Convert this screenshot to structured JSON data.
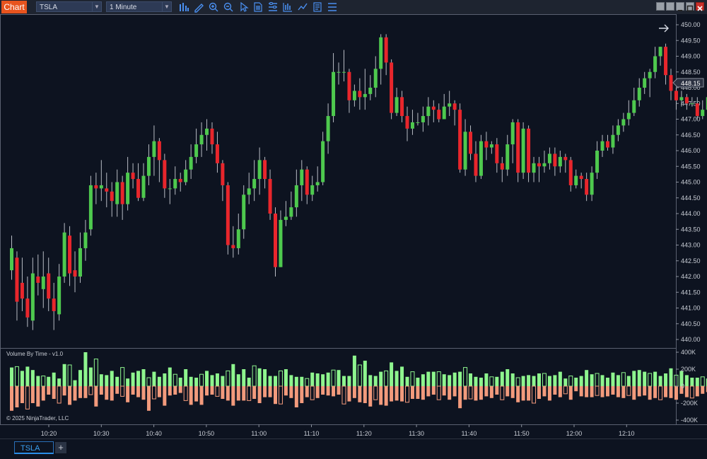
{
  "toolbar": {
    "chart_label": "Chart",
    "instrument": "TSLA",
    "interval": "1 Minute",
    "tools": [
      "bar-type-icon",
      "pencil-icon",
      "zoom-in-icon",
      "zoom-out-icon",
      "pointer-icon",
      "data-box-icon",
      "properties-icon",
      "indicators-icon",
      "strategies-icon",
      "templates-icon",
      "chart-trader-icon"
    ]
  },
  "window_buttons": [
    "tile-icon",
    "minimize-icon",
    "maximize-icon",
    "close-icon"
  ],
  "price_axis": {
    "ticks": [
      "450.00",
      "449.50",
      "449.00",
      "448.50",
      "448.00",
      "447.50",
      "447.00",
      "446.50",
      "446.00",
      "445.50",
      "445.00",
      "444.50",
      "444.00",
      "443.50",
      "443.00",
      "442.50",
      "442.00",
      "441.50",
      "441.00",
      "440.50",
      "440.00"
    ],
    "last_price": "448.15"
  },
  "volume_axis": {
    "ticks": [
      "400K",
      "200K",
      "0",
      "-200K",
      "-400K"
    ]
  },
  "volume_indicator_label": "Volume By Time - v1.0",
  "copyright": "© 2025 NinjaTrader, LLC",
  "time_axis": {
    "ticks": [
      "10:20",
      "10:30",
      "10:40",
      "10:50",
      "11:00",
      "11:10",
      "11:20",
      "11:30",
      "11:40",
      "11:50",
      "12:00",
      "12:10"
    ]
  },
  "tabs": [
    {
      "label": "TSLA"
    }
  ],
  "colors": {
    "up": "#4ec94e",
    "down": "#e8262c",
    "vol_up": "#8ef58e",
    "vol_down": "#f29a7c",
    "background": "#0d1320"
  },
  "chart_data": {
    "type": "candlestick",
    "y_range": [
      439.8,
      450.2
    ],
    "candles": [
      [
        442.2,
        442.9,
        443.3,
        441.9
      ],
      [
        442.6,
        441.2,
        442.8,
        440.6
      ],
      [
        441.8,
        441.3,
        442.6,
        440.9
      ],
      [
        441.3,
        440.7,
        442.0,
        440.4
      ],
      [
        440.6,
        442.1,
        442.6,
        440.3
      ],
      [
        442.0,
        441.8,
        442.7,
        441.4
      ],
      [
        441.6,
        442.0,
        442.8,
        441.0
      ],
      [
        442.1,
        441.3,
        442.6,
        440.9
      ],
      [
        441.3,
        440.9,
        441.8,
        440.3
      ],
      [
        440.8,
        442.0,
        442.4,
        440.6
      ],
      [
        442.0,
        443.4,
        443.7,
        441.8
      ],
      [
        443.3,
        442.1,
        443.6,
        441.7
      ],
      [
        442.2,
        442.0,
        442.8,
        441.5
      ],
      [
        442.0,
        442.9,
        443.4,
        441.8
      ],
      [
        442.9,
        443.4,
        443.8,
        442.5
      ],
      [
        443.5,
        444.9,
        445.2,
        443.3
      ],
      [
        444.9,
        444.8,
        445.3,
        444.3
      ],
      [
        444.8,
        444.9,
        445.7,
        444.4
      ],
      [
        444.8,
        444.7,
        445.3,
        444.2
      ],
      [
        444.7,
        444.4,
        445.0,
        443.9
      ],
      [
        444.3,
        445.0,
        445.4,
        443.9
      ],
      [
        445.0,
        444.3,
        445.2,
        443.8
      ],
      [
        444.3,
        445.3,
        445.8,
        444.1
      ],
      [
        445.3,
        445.1,
        445.6,
        444.8
      ],
      [
        445.1,
        444.5,
        445.6,
        444.4
      ],
      [
        444.5,
        445.2,
        445.6,
        444.4
      ],
      [
        445.2,
        445.8,
        446.2,
        444.9
      ],
      [
        445.8,
        446.3,
        446.8,
        445.2
      ],
      [
        446.3,
        445.7,
        446.4,
        445.0
      ],
      [
        445.7,
        444.8,
        445.9,
        444.5
      ],
      [
        444.8,
        444.8,
        445.1,
        444.3
      ],
      [
        444.8,
        445.1,
        445.5,
        444.6
      ],
      [
        445.1,
        445.0,
        445.3,
        444.7
      ],
      [
        445.0,
        445.4,
        445.7,
        444.9
      ],
      [
        445.4,
        445.8,
        446.2,
        445.1
      ],
      [
        445.8,
        446.2,
        446.7,
        445.6
      ],
      [
        446.2,
        446.5,
        446.9,
        445.8
      ],
      [
        446.5,
        446.7,
        447.0,
        446.0
      ],
      [
        446.7,
        446.2,
        446.9,
        445.9
      ],
      [
        446.2,
        445.6,
        446.6,
        445.3
      ],
      [
        445.6,
        444.9,
        445.7,
        444.4
      ],
      [
        444.9,
        443.0,
        445.0,
        442.7
      ],
      [
        443.0,
        442.9,
        443.6,
        442.6
      ],
      [
        442.9,
        443.5,
        444.0,
        442.7
      ],
      [
        443.5,
        444.6,
        444.9,
        443.2
      ],
      [
        444.6,
        444.8,
        445.3,
        444.3
      ],
      [
        444.8,
        445.1,
        445.7,
        444.4
      ],
      [
        445.1,
        445.7,
        446.1,
        444.6
      ],
      [
        445.7,
        445.1,
        445.8,
        444.8
      ],
      [
        445.1,
        444.0,
        445.4,
        443.8
      ],
      [
        444.0,
        442.3,
        444.2,
        442.0
      ],
      [
        442.3,
        443.8,
        444.1,
        442.3
      ],
      [
        443.8,
        443.9,
        444.4,
        443.6
      ],
      [
        443.9,
        444.2,
        444.7,
        443.8
      ],
      [
        444.2,
        444.9,
        445.4,
        443.9
      ],
      [
        444.9,
        445.4,
        445.7,
        444.4
      ],
      [
        445.4,
        444.6,
        445.5,
        444.3
      ],
      [
        444.6,
        444.9,
        445.2,
        444.4
      ],
      [
        444.9,
        445.0,
        445.5,
        444.7
      ],
      [
        445.0,
        446.3,
        446.6,
        444.9
      ],
      [
        446.3,
        447.1,
        447.5,
        445.9
      ],
      [
        447.1,
        448.5,
        449.1,
        446.9
      ],
      [
        448.5,
        448.5,
        448.8,
        448.1
      ],
      [
        448.5,
        448.5,
        449.2,
        448.2
      ],
      [
        448.5,
        447.6,
        448.6,
        447.2
      ],
      [
        447.6,
        447.9,
        448.1,
        447.4
      ],
      [
        447.9,
        447.7,
        448.3,
        447.3
      ],
      [
        447.7,
        447.8,
        448.6,
        447.3
      ],
      [
        447.8,
        448.0,
        448.4,
        447.6
      ],
      [
        448.0,
        448.6,
        449.0,
        447.7
      ],
      [
        448.6,
        449.6,
        449.7,
        448.1
      ],
      [
        449.6,
        448.8,
        449.7,
        448.4
      ],
      [
        448.8,
        447.2,
        448.9,
        447.0
      ],
      [
        447.2,
        447.7,
        448.0,
        447.1
      ],
      [
        447.7,
        447.1,
        447.9,
        446.9
      ],
      [
        447.1,
        446.7,
        447.4,
        446.3
      ],
      [
        446.7,
        446.9,
        447.3,
        446.5
      ],
      [
        446.9,
        446.9,
        447.2,
        446.8
      ],
      [
        446.9,
        447.1,
        447.4,
        446.6
      ],
      [
        447.1,
        447.4,
        447.7,
        446.8
      ],
      [
        447.4,
        447.3,
        447.6,
        446.9
      ],
      [
        447.3,
        447.0,
        447.5,
        446.9
      ],
      [
        447.0,
        447.4,
        447.8,
        447.0
      ],
      [
        447.4,
        447.5,
        447.9,
        447.1
      ],
      [
        447.5,
        447.3,
        447.6,
        446.8
      ],
      [
        447.3,
        445.4,
        447.5,
        445.3
      ],
      [
        445.4,
        446.6,
        447.0,
        445.2
      ],
      [
        446.6,
        445.9,
        446.8,
        445.7
      ],
      [
        445.9,
        445.2,
        446.3,
        445.0
      ],
      [
        445.2,
        446.3,
        446.5,
        445.1
      ],
      [
        446.3,
        446.1,
        446.6,
        445.7
      ],
      [
        446.1,
        446.2,
        446.3,
        445.9
      ],
      [
        446.2,
        445.6,
        446.4,
        445.3
      ],
      [
        445.6,
        445.4,
        445.8,
        445.0
      ],
      [
        445.4,
        446.2,
        446.5,
        445.2
      ],
      [
        446.2,
        446.9,
        447.0,
        445.6
      ],
      [
        446.9,
        445.3,
        447.0,
        445.0
      ],
      [
        445.3,
        446.7,
        446.9,
        445.1
      ],
      [
        446.7,
        445.3,
        446.8,
        445.0
      ],
      [
        445.3,
        445.6,
        445.8,
        445.0
      ],
      [
        445.6,
        445.5,
        445.8,
        445.0
      ],
      [
        445.5,
        445.6,
        446.0,
        445.3
      ],
      [
        445.6,
        445.9,
        446.1,
        445.4
      ],
      [
        445.9,
        445.5,
        446.1,
        445.2
      ],
      [
        445.5,
        445.8,
        446.0,
        445.3
      ],
      [
        445.8,
        445.7,
        445.9,
        445.3
      ],
      [
        445.7,
        444.9,
        445.8,
        444.7
      ],
      [
        444.9,
        445.2,
        445.4,
        444.8
      ],
      [
        445.2,
        445.1,
        445.3,
        444.8
      ],
      [
        445.1,
        444.6,
        445.3,
        444.4
      ],
      [
        444.6,
        445.3,
        445.5,
        444.4
      ],
      [
        445.3,
        446.0,
        446.3,
        445.1
      ],
      [
        446.0,
        446.3,
        446.5,
        445.8
      ],
      [
        446.3,
        446.1,
        446.5,
        446.0
      ],
      [
        446.1,
        446.5,
        446.8,
        445.9
      ],
      [
        446.5,
        446.8,
        447.0,
        446.3
      ],
      [
        446.8,
        447.0,
        447.2,
        446.6
      ],
      [
        447.0,
        447.2,
        447.6,
        446.8
      ],
      [
        447.2,
        447.6,
        448.0,
        447.1
      ],
      [
        447.6,
        448.0,
        448.3,
        447.4
      ],
      [
        448.0,
        448.3,
        448.5,
        447.8
      ],
      [
        448.3,
        448.5,
        448.6,
        447.7
      ],
      [
        448.5,
        449.0,
        449.3,
        448.3
      ],
      [
        449.0,
        449.3,
        449.3,
        448.7
      ],
      [
        449.3,
        448.4,
        449.4,
        448.1
      ],
      [
        448.4,
        447.9,
        448.6,
        447.6
      ],
      [
        447.9,
        447.6,
        448.0,
        447.3
      ],
      [
        447.6,
        447.7,
        447.9,
        447.4
      ],
      [
        447.7,
        447.5,
        447.8,
        447.3
      ],
      [
        447.5,
        447.5,
        447.7,
        447.4
      ],
      [
        447.5,
        447.1,
        447.7,
        447.0
      ],
      [
        447.1,
        447.3,
        447.6,
        447.0
      ],
      [
        447.3,
        447.7,
        447.9,
        447.1
      ],
      [
        447.7,
        447.9,
        448.3,
        447.4
      ],
      [
        447.9,
        448.15,
        448.4,
        447.9
      ]
    ],
    "volume": [
      [
        220000,
        -290000
      ],
      [
        230000,
        -250000
      ],
      [
        180000,
        -200000
      ],
      [
        230000,
        -270000
      ],
      [
        190000,
        -200000
      ],
      [
        120000,
        -240000
      ],
      [
        120000,
        -170000
      ],
      [
        110000,
        -100000
      ],
      [
        160000,
        -150000
      ],
      [
        90000,
        -200000
      ],
      [
        260000,
        -110000
      ],
      [
        250000,
        -220000
      ],
      [
        70000,
        -170000
      ],
      [
        190000,
        -140000
      ],
      [
        400000,
        -140000
      ],
      [
        220000,
        -100000
      ],
      [
        320000,
        -240000
      ],
      [
        140000,
        -100000
      ],
      [
        130000,
        -160000
      ],
      [
        180000,
        -170000
      ],
      [
        110000,
        -90000
      ],
      [
        220000,
        -120000
      ],
      [
        90000,
        -190000
      ],
      [
        160000,
        -100000
      ],
      [
        180000,
        -130000
      ],
      [
        200000,
        -160000
      ],
      [
        100000,
        -290000
      ],
      [
        170000,
        -150000
      ],
      [
        110000,
        -130000
      ],
      [
        150000,
        -230000
      ],
      [
        220000,
        -110000
      ],
      [
        140000,
        -100000
      ],
      [
        100000,
        -80000
      ],
      [
        200000,
        -170000
      ],
      [
        110000,
        -220000
      ],
      [
        100000,
        -180000
      ],
      [
        140000,
        -220000
      ],
      [
        180000,
        -110000
      ],
      [
        130000,
        -100000
      ],
      [
        150000,
        -120000
      ],
      [
        120000,
        -150000
      ],
      [
        180000,
        -170000
      ],
      [
        260000,
        -230000
      ],
      [
        140000,
        -170000
      ],
      [
        200000,
        -170000
      ],
      [
        100000,
        -170000
      ],
      [
        240000,
        -150000
      ],
      [
        210000,
        -200000
      ],
      [
        200000,
        -130000
      ],
      [
        120000,
        -130000
      ],
      [
        120000,
        -210000
      ],
      [
        180000,
        -210000
      ],
      [
        200000,
        -110000
      ],
      [
        130000,
        -140000
      ],
      [
        110000,
        -250000
      ],
      [
        110000,
        -200000
      ],
      [
        90000,
        -130000
      ],
      [
        160000,
        -160000
      ],
      [
        150000,
        -140000
      ],
      [
        140000,
        -100000
      ],
      [
        160000,
        -110000
      ],
      [
        190000,
        -120000
      ],
      [
        190000,
        -100000
      ],
      [
        120000,
        -210000
      ],
      [
        120000,
        -180000
      ],
      [
        360000,
        -140000
      ],
      [
        250000,
        -190000
      ],
      [
        300000,
        -200000
      ],
      [
        130000,
        -240000
      ],
      [
        120000,
        -160000
      ],
      [
        170000,
        -220000
      ],
      [
        180000,
        -230000
      ],
      [
        280000,
        -180000
      ],
      [
        180000,
        -170000
      ],
      [
        230000,
        -180000
      ],
      [
        110000,
        -190000
      ],
      [
        170000,
        -150000
      ],
      [
        100000,
        -150000
      ],
      [
        140000,
        -160000
      ],
      [
        170000,
        -120000
      ],
      [
        170000,
        -100000
      ],
      [
        170000,
        -160000
      ],
      [
        140000,
        -110000
      ],
      [
        130000,
        -160000
      ],
      [
        160000,
        -120000
      ],
      [
        170000,
        -260000
      ],
      [
        220000,
        -160000
      ],
      [
        150000,
        -150000
      ],
      [
        110000,
        -170000
      ],
      [
        100000,
        -160000
      ],
      [
        150000,
        -120000
      ],
      [
        110000,
        -140000
      ],
      [
        110000,
        -100000
      ],
      [
        170000,
        -160000
      ],
      [
        200000,
        -120000
      ],
      [
        150000,
        -140000
      ],
      [
        100000,
        -190000
      ],
      [
        120000,
        -170000
      ],
      [
        130000,
        -170000
      ],
      [
        120000,
        -200000
      ],
      [
        150000,
        -150000
      ],
      [
        150000,
        -120000
      ],
      [
        120000,
        -170000
      ],
      [
        130000,
        -100000
      ],
      [
        170000,
        -130000
      ],
      [
        90000,
        -90000
      ],
      [
        120000,
        -160000
      ],
      [
        100000,
        -60000
      ],
      [
        120000,
        -120000
      ],
      [
        190000,
        -130000
      ],
      [
        140000,
        -130000
      ],
      [
        150000,
        -110000
      ],
      [
        130000,
        -130000
      ],
      [
        100000,
        -120000
      ],
      [
        160000,
        -100000
      ],
      [
        130000,
        -130000
      ],
      [
        160000,
        -140000
      ],
      [
        120000,
        -110000
      ],
      [
        180000,
        -160000
      ],
      [
        190000,
        -120000
      ],
      [
        170000,
        -110000
      ],
      [
        150000,
        -160000
      ],
      [
        170000,
        -140000
      ],
      [
        120000,
        -160000
      ],
      [
        150000,
        -130000
      ],
      [
        210000,
        -140000
      ],
      [
        130000,
        -160000
      ],
      [
        180000,
        -90000
      ],
      [
        130000,
        -130000
      ],
      [
        100000,
        -140000
      ],
      [
        100000,
        -120000
      ],
      [
        110000,
        -90000
      ],
      [
        90000,
        -70000
      ],
      [
        110000,
        -100000
      ],
      [
        100000,
        -120000
      ]
    ]
  }
}
